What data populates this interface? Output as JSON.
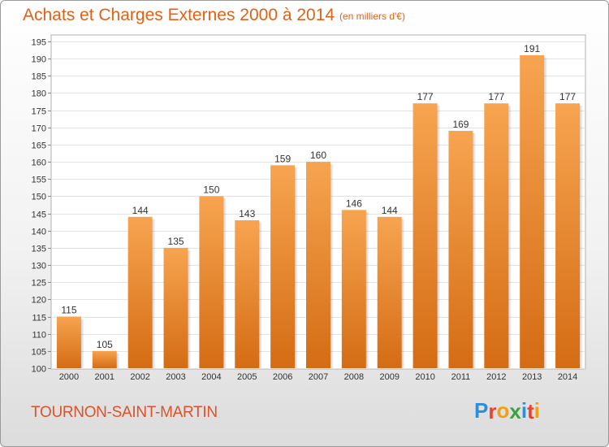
{
  "header": {
    "title": "Achats et Charges Externes 2000 à 2014",
    "subtitle": "(en milliers d'€)"
  },
  "footer": {
    "commune": "TOURNON-SAINT-MARTIN",
    "logo": {
      "letters": [
        "P",
        "r",
        "o",
        "x",
        "i",
        "t",
        "i"
      ],
      "colors": [
        "#2b8fd9",
        "#e8412e",
        "#f0a012",
        "#3aa13c",
        "#2b8fd9",
        "#e8412e",
        "#f0a012"
      ]
    }
  },
  "colors": {
    "bar_top": "#f7a450",
    "bar_bottom": "#d46c14",
    "text": "#333333",
    "accent": "#e06218"
  },
  "chart_data": {
    "type": "bar",
    "title": "Achats et Charges Externes 2000 à 2014",
    "subtitle": "(en milliers d'€)",
    "categories": [
      "2000",
      "2001",
      "2002",
      "2003",
      "2004",
      "2005",
      "2006",
      "2007",
      "2008",
      "2009",
      "2010",
      "2011",
      "2012",
      "2013",
      "2014"
    ],
    "values": [
      115,
      105,
      144,
      135,
      150,
      143,
      159,
      160,
      146,
      144,
      177,
      169,
      177,
      191,
      177
    ],
    "ylim": [
      100,
      195
    ],
    "yticks": [
      100,
      105,
      110,
      115,
      120,
      125,
      130,
      135,
      140,
      145,
      150,
      155,
      160,
      165,
      170,
      175,
      180,
      185,
      190,
      195
    ],
    "xlabel": "",
    "ylabel": "",
    "grid": true,
    "legend": "none"
  }
}
